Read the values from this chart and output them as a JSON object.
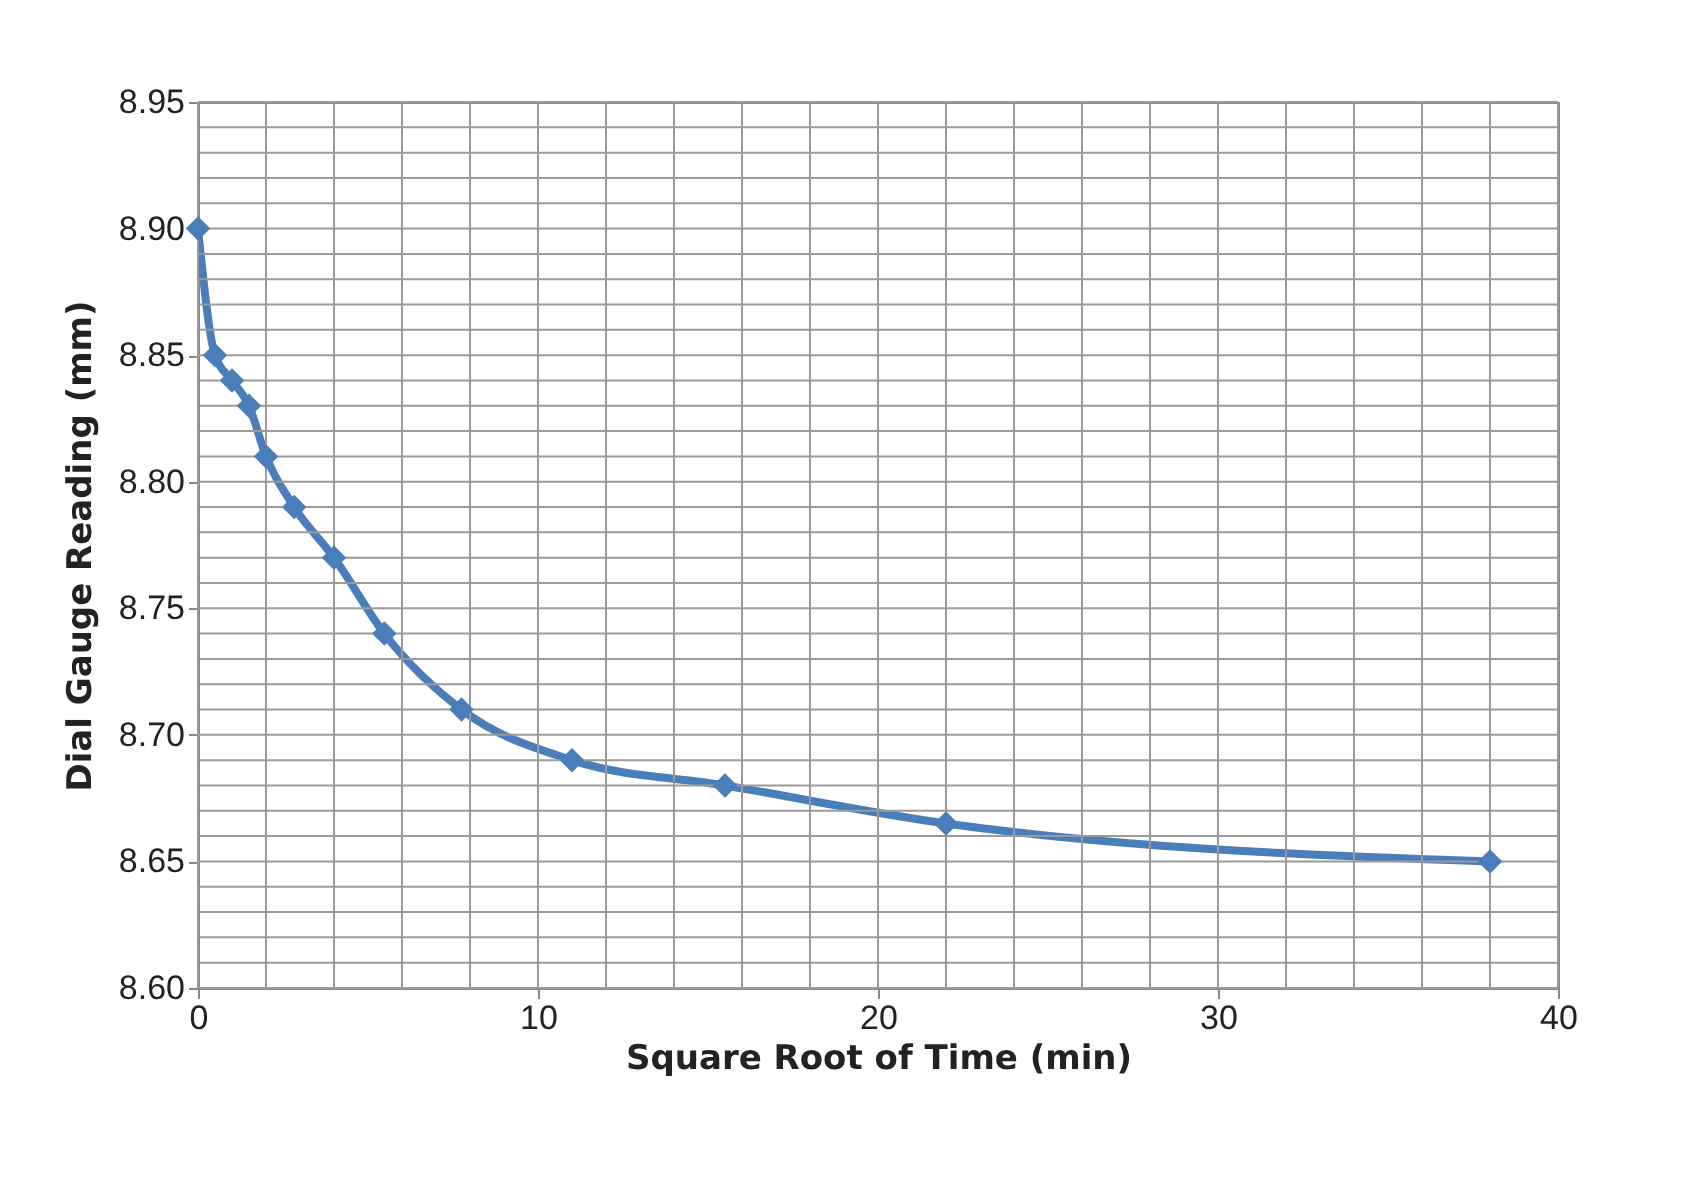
{
  "chart_data": {
    "type": "line",
    "xlabel": "Square Root of Time (min)",
    "ylabel": "Dial Gauge Reading (mm)",
    "x": [
      0,
      0.5,
      1,
      1.5,
      2,
      2.83,
      4,
      5.48,
      7.75,
      11,
      15.5,
      22,
      38
    ],
    "series": [
      {
        "color": "#4a7ebb",
        "values": [
          8.9,
          8.85,
          8.84,
          8.83,
          8.81,
          8.79,
          8.77,
          8.74,
          8.71,
          8.69,
          8.68,
          8.665,
          8.65
        ]
      }
    ],
    "xlim": [
      0,
      40
    ],
    "xticks": [
      0,
      {
        "value": 2,
        "label": null
      },
      {
        "value": 4,
        "label": null
      },
      {
        "value": 6,
        "label": null
      },
      {
        "value": 8,
        "label": null
      },
      10,
      {
        "value": 12,
        "label": null
      },
      {
        "value": 14,
        "label": null
      },
      {
        "value": 16,
        "label": null
      },
      {
        "value": 18,
        "label": null
      },
      20,
      {
        "value": 22,
        "label": null
      },
      {
        "value": 24,
        "label": null
      },
      {
        "value": 26,
        "label": null
      },
      {
        "value": 28,
        "label": null
      },
      30,
      {
        "value": 32,
        "label": null
      },
      {
        "value": 34,
        "label": null
      },
      {
        "value": 36,
        "label": null
      },
      {
        "value": 38,
        "label": null
      },
      40
    ],
    "ylim": [
      8.6,
      8.95
    ],
    "yticks": [
      {
        "value": 8.6,
        "label": "8.60"
      },
      {
        "value": 8.61,
        "label": null
      },
      {
        "value": 8.62,
        "label": null
      },
      {
        "value": 8.63,
        "label": null
      },
      {
        "value": 8.64,
        "label": null
      },
      {
        "value": 8.65,
        "label": "8.65"
      },
      {
        "value": 8.66,
        "label": null
      },
      {
        "value": 8.67,
        "label": null
      },
      {
        "value": 8.68,
        "label": null
      },
      {
        "value": 8.69,
        "label": null
      },
      {
        "value": 8.7,
        "label": "8.70"
      },
      {
        "value": 8.71,
        "label": null
      },
      {
        "value": 8.72,
        "label": null
      },
      {
        "value": 8.73,
        "label": null
      },
      {
        "value": 8.74,
        "label": null
      },
      {
        "value": 8.75,
        "label": "8.75"
      },
      {
        "value": 8.76,
        "label": null
      },
      {
        "value": 8.77,
        "label": null
      },
      {
        "value": 8.78,
        "label": null
      },
      {
        "value": 8.79,
        "label": null
      },
      {
        "value": 8.8,
        "label": "8.80"
      },
      {
        "value": 8.81,
        "label": null
      },
      {
        "value": 8.82,
        "label": null
      },
      {
        "value": 8.83,
        "label": null
      },
      {
        "value": 8.84,
        "label": null
      },
      {
        "value": 8.85,
        "label": "8.85"
      },
      {
        "value": 8.86,
        "label": null
      },
      {
        "value": 8.87,
        "label": null
      },
      {
        "value": 8.88,
        "label": null
      },
      {
        "value": 8.89,
        "label": null
      },
      {
        "value": 8.9,
        "label": "8.90"
      },
      {
        "value": 8.91,
        "label": null
      },
      {
        "value": 8.92,
        "label": null
      },
      {
        "value": 8.93,
        "label": null
      },
      {
        "value": 8.94,
        "label": null
      },
      {
        "value": 8.95,
        "label": "8.95"
      }
    ],
    "grid": true,
    "marker": "diamond",
    "line_style": "solid"
  }
}
